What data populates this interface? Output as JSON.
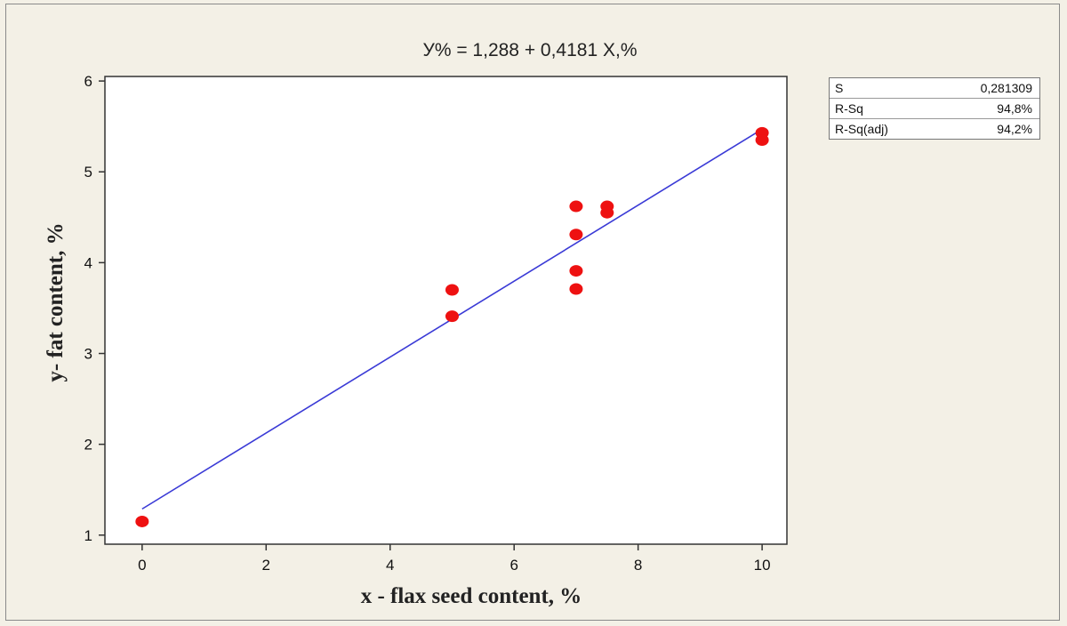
{
  "chart_data": {
    "type": "scatter",
    "title": "У% =  1,288 + 0,4181 X,%",
    "xlabel": "x - flax seed content, %",
    "ylabel": "y- fat content, %",
    "xlim": [
      -0.6,
      10.4
    ],
    "ylim": [
      0.9,
      6.05
    ],
    "x_ticks": [
      0,
      2,
      4,
      6,
      8,
      10
    ],
    "y_ticks": [
      1,
      2,
      3,
      4,
      5,
      6
    ],
    "grid": false,
    "points": [
      {
        "x": 0,
        "y": 1.15
      },
      {
        "x": 5,
        "y": 3.7
      },
      {
        "x": 5,
        "y": 3.41
      },
      {
        "x": 7,
        "y": 4.62
      },
      {
        "x": 7,
        "y": 4.31
      },
      {
        "x": 7,
        "y": 3.91
      },
      {
        "x": 7,
        "y": 3.71
      },
      {
        "x": 7.5,
        "y": 4.62
      },
      {
        "x": 7.5,
        "y": 4.55
      },
      {
        "x": 10,
        "y": 5.43
      },
      {
        "x": 10,
        "y": 5.35
      }
    ],
    "fit_line": {
      "intercept": 1.288,
      "slope": 0.4181,
      "x_range": [
        0,
        10
      ]
    },
    "colors": {
      "points": "#ee1111",
      "line": "#3a3ad6",
      "plot_bg": "#ffffff"
    }
  },
  "stats": [
    {
      "label": "S",
      "value": "0,281309"
    },
    {
      "label": "R-Sq",
      "value": "94,8%"
    },
    {
      "label": "R-Sq(adj)",
      "value": "94,2%"
    }
  ]
}
